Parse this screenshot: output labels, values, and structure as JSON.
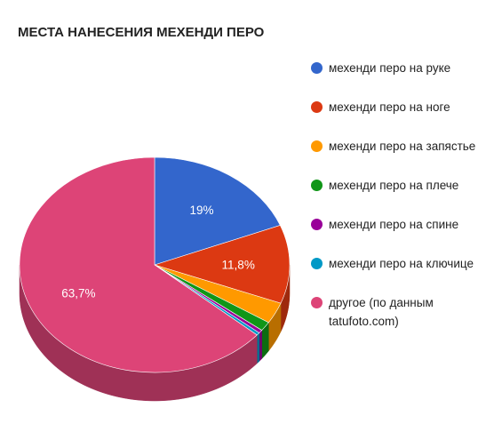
{
  "chart_data": {
    "type": "pie",
    "title": "МЕСТА НАНЕСЕНИЯ МЕХЕНДИ ПЕРО",
    "three_d": true,
    "legend_position": "right",
    "slices": [
      {
        "label": "механди перо на руке",
        "value": 19.0,
        "display": "19%",
        "color": "#3366cc"
      },
      {
        "label": "механди перо на ноге",
        "value": 11.8,
        "display": "11,8%",
        "color": "#dc3912"
      },
      {
        "label": "механди перо на запястье",
        "value": 3.2,
        "display": "",
        "color": "#ff9900"
      },
      {
        "label": "механди перо на плече",
        "value": 1.4,
        "display": "",
        "color": "#109618"
      },
      {
        "label": "механди перо на спине",
        "value": 0.5,
        "display": "",
        "color": "#990099"
      },
      {
        "label": "механди перо на ключице",
        "value": 0.4,
        "display": "",
        "color": "#0099c6"
      },
      {
        "label": "другое (по данным tatufoto.com)",
        "value": 63.7,
        "display": "63,7%",
        "color": "#dd4477"
      }
    ]
  }
}
